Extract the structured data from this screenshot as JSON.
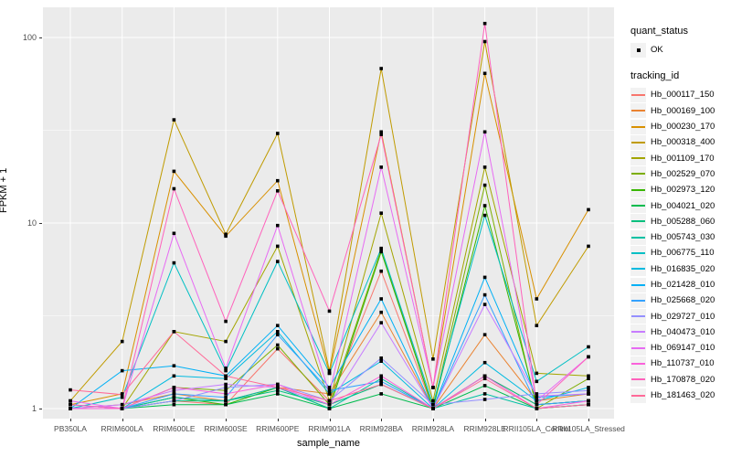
{
  "labels": {
    "y_axis": "FPKM + 1",
    "x_axis": "sample_name"
  },
  "legend": {
    "quant_title": "quant_status",
    "ok_label": "OK",
    "tracking_title": "tracking_id"
  },
  "colors": {
    "panel_bg": "#EBEBEB",
    "grid": "#FFFFFF",
    "point": "#000000",
    "tick_label": "#4D4D4D",
    "legend_key_bg": "#F2F2F2"
  },
  "chart_data": {
    "type": "line",
    "title": "",
    "xlabel": "sample_name",
    "ylabel": "FPKM + 1",
    "y_scale": "log10",
    "yticks": [
      1,
      10,
      100
    ],
    "ytick_labels": [
      "1",
      "10",
      "100"
    ],
    "minor_yticks": [
      3.1623,
      31.623
    ],
    "ylim": [
      0.93,
      145
    ],
    "grid": true,
    "legend_position": "right",
    "point_shape": "filled-black-square",
    "quant_status": "OK",
    "categories": [
      "PB350LA",
      "RRIM600LA",
      "RRIM600LE",
      "RRIM600SE",
      "RRIM600PE",
      "RRIM901LA",
      "RRIM928BA",
      "RRIM928LA",
      "RRIM928LE",
      "RRII105LA_Control",
      "RRII105LA_Stressed"
    ],
    "series": [
      {
        "name": "Hb_000117_150",
        "color": "#F8766D",
        "values": [
          1.0,
          1.0,
          1.1,
          1.05,
          2.1,
          1.1,
          5.5,
          1.0,
          1.5,
          1.05,
          1.1
        ]
      },
      {
        "name": "Hb_000169_100",
        "color": "#EA8331",
        "values": [
          1.0,
          1.05,
          1.2,
          1.1,
          1.3,
          1.2,
          3.3,
          1.0,
          2.5,
          1.1,
          1.2
        ]
      },
      {
        "name": "Hb_000230_170",
        "color": "#D89000",
        "values": [
          1.05,
          1.2,
          19.0,
          8.5,
          16.9,
          1.55,
          31.0,
          1.3,
          64.0,
          3.9,
          11.8
        ]
      },
      {
        "name": "Hb_000318_400",
        "color": "#C09B00",
        "values": [
          1.1,
          2.3,
          36.0,
          8.7,
          30.4,
          1.6,
          68.0,
          1.85,
          95.0,
          2.8,
          7.5
        ]
      },
      {
        "name": "Hb_001109_170",
        "color": "#A3A500",
        "values": [
          1.0,
          1.0,
          2.6,
          2.3,
          7.5,
          1.1,
          11.3,
          1.1,
          20.0,
          1.55,
          1.5
        ]
      },
      {
        "name": "Hb_002529_070",
        "color": "#7CAE00",
        "values": [
          1.0,
          1.0,
          1.3,
          1.25,
          2.2,
          1.05,
          7.2,
          1.0,
          16.0,
          1.0,
          1.45
        ]
      },
      {
        "name": "Hb_002973_120",
        "color": "#39B600",
        "values": [
          1.0,
          1.0,
          1.15,
          1.05,
          1.3,
          1.0,
          7.0,
          1.0,
          12.4,
          1.05,
          1.1
        ]
      },
      {
        "name": "Hb_004021_020",
        "color": "#00BB4E",
        "values": [
          1.0,
          1.0,
          1.05,
          1.05,
          1.2,
          1.0,
          1.2,
          1.0,
          1.33,
          1.0,
          1.05
        ]
      },
      {
        "name": "Hb_005288_060",
        "color": "#00BF7D",
        "values": [
          1.05,
          1.0,
          1.1,
          1.1,
          1.25,
          1.05,
          1.35,
          1.0,
          1.5,
          1.05,
          1.1
        ]
      },
      {
        "name": "Hb_005743_030",
        "color": "#00C1A3",
        "values": [
          1.0,
          1.0,
          1.15,
          1.1,
          1.3,
          1.0,
          1.45,
          1.0,
          1.2,
          1.0,
          1.05
        ]
      },
      {
        "name": "Hb_006775_110",
        "color": "#00BFC4",
        "values": [
          1.0,
          1.15,
          6.1,
          1.6,
          6.2,
          1.55,
          7.3,
          1.05,
          11.0,
          1.4,
          2.15
        ]
      },
      {
        "name": "Hb_016835_020",
        "color": "#00BAE0",
        "values": [
          1.0,
          1.0,
          1.5,
          1.45,
          2.6,
          1.2,
          1.8,
          1.0,
          1.77,
          1.1,
          1.3
        ]
      },
      {
        "name": "Hb_021428_010",
        "color": "#00B0F6",
        "values": [
          1.0,
          1.6,
          1.7,
          1.5,
          2.8,
          1.3,
          3.9,
          1.0,
          5.1,
          1.15,
          1.2
        ]
      },
      {
        "name": "Hb_025668_020",
        "color": "#35A2FF",
        "values": [
          1.0,
          1.0,
          1.2,
          1.15,
          2.5,
          1.25,
          1.4,
          1.0,
          4.1,
          1.05,
          1.1
        ]
      },
      {
        "name": "Hb_029727_010",
        "color": "#9590FF",
        "values": [
          1.05,
          1.0,
          1.1,
          1.3,
          1.35,
          1.1,
          1.87,
          1.05,
          1.12,
          1.2,
          1.25
        ]
      },
      {
        "name": "Hb_040473_010",
        "color": "#C77CFF",
        "values": [
          1.0,
          1.05,
          1.25,
          1.35,
          1.3,
          1.05,
          2.9,
          1.0,
          3.64,
          1.17,
          1.2
        ]
      },
      {
        "name": "Hb_069147_010",
        "color": "#E76BF3",
        "values": [
          1.1,
          1.0,
          8.8,
          1.65,
          9.7,
          1.2,
          20.0,
          1.3,
          31.0,
          1.1,
          1.9
        ]
      },
      {
        "name": "Hb_110737_010",
        "color": "#FA62DB",
        "values": [
          1.0,
          1.0,
          1.3,
          1.2,
          1.35,
          1.05,
          1.5,
          1.0,
          1.5,
          1.0,
          1.1
        ]
      },
      {
        "name": "Hb_170878_020",
        "color": "#FF62BC",
        "values": [
          1.05,
          1.0,
          15.3,
          2.95,
          14.9,
          3.35,
          30.0,
          1.3,
          119.0,
          1.05,
          1.9
        ]
      },
      {
        "name": "Hb_181463_020",
        "color": "#FF6A98",
        "values": [
          1.26,
          1.19,
          2.6,
          1.5,
          1.3,
          1.1,
          1.35,
          1.0,
          1.45,
          1.0,
          1.05
        ]
      }
    ]
  }
}
